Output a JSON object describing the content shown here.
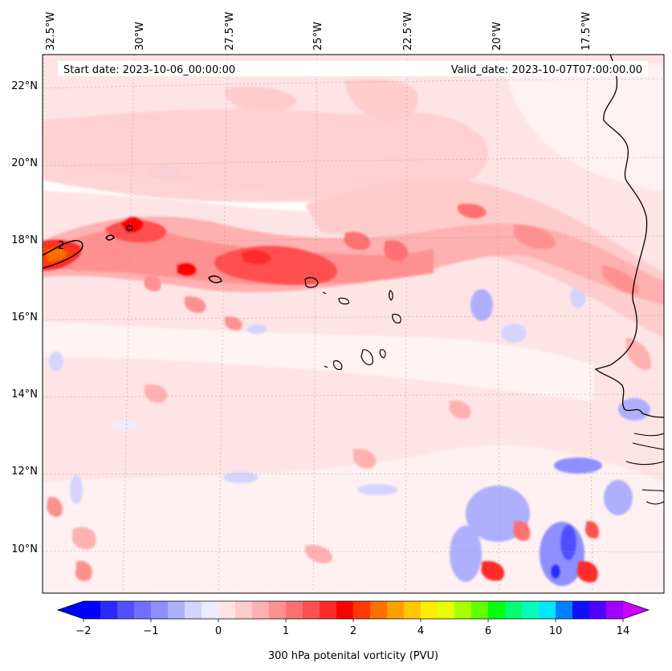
{
  "map": {
    "start_label": "Start date: 2023-10-06_00:00:00",
    "valid_label": "Valid_date: 2023-10-07T07:00:00.00",
    "lon_labels": [
      "32.5°W",
      "30°W",
      "27.5°W",
      "25°W",
      "22.5°W",
      "20°W",
      "17.5°W"
    ],
    "lat_labels": [
      "22°N",
      "20°N",
      "18°N",
      "16°N",
      "14°N",
      "12°N",
      "10°N"
    ],
    "contour_label": "2",
    "background_color": "#ffe4e6",
    "coast_color": "#000000"
  },
  "colorbar": {
    "label": "300 hPa potenital vorticity (PVU)",
    "ticks": [
      "−2",
      "−1",
      "0",
      "1",
      "2",
      "4",
      "6",
      "10",
      "14"
    ],
    "colors": [
      "#0000ff",
      "#2a2aff",
      "#5050ff",
      "#7070ff",
      "#8f8fff",
      "#afafff",
      "#d4d4ff",
      "#ececff",
      "#ffe4e6",
      "#ffcccc",
      "#ffb0b0",
      "#ff9090",
      "#ff7070",
      "#ff5050",
      "#ff2a2a",
      "#ff0000",
      "#ff3a00",
      "#ff7000",
      "#ffa000",
      "#ffc800",
      "#ffee00",
      "#e8ff00",
      "#a8ff00",
      "#60ff00",
      "#00ff10",
      "#00ff70",
      "#00ffb8",
      "#00e8ff",
      "#0080ff",
      "#1010ff",
      "#5000ff",
      "#a000ff"
    ],
    "under_color": "#0000ff",
    "over_color": "#cc00ff"
  }
}
